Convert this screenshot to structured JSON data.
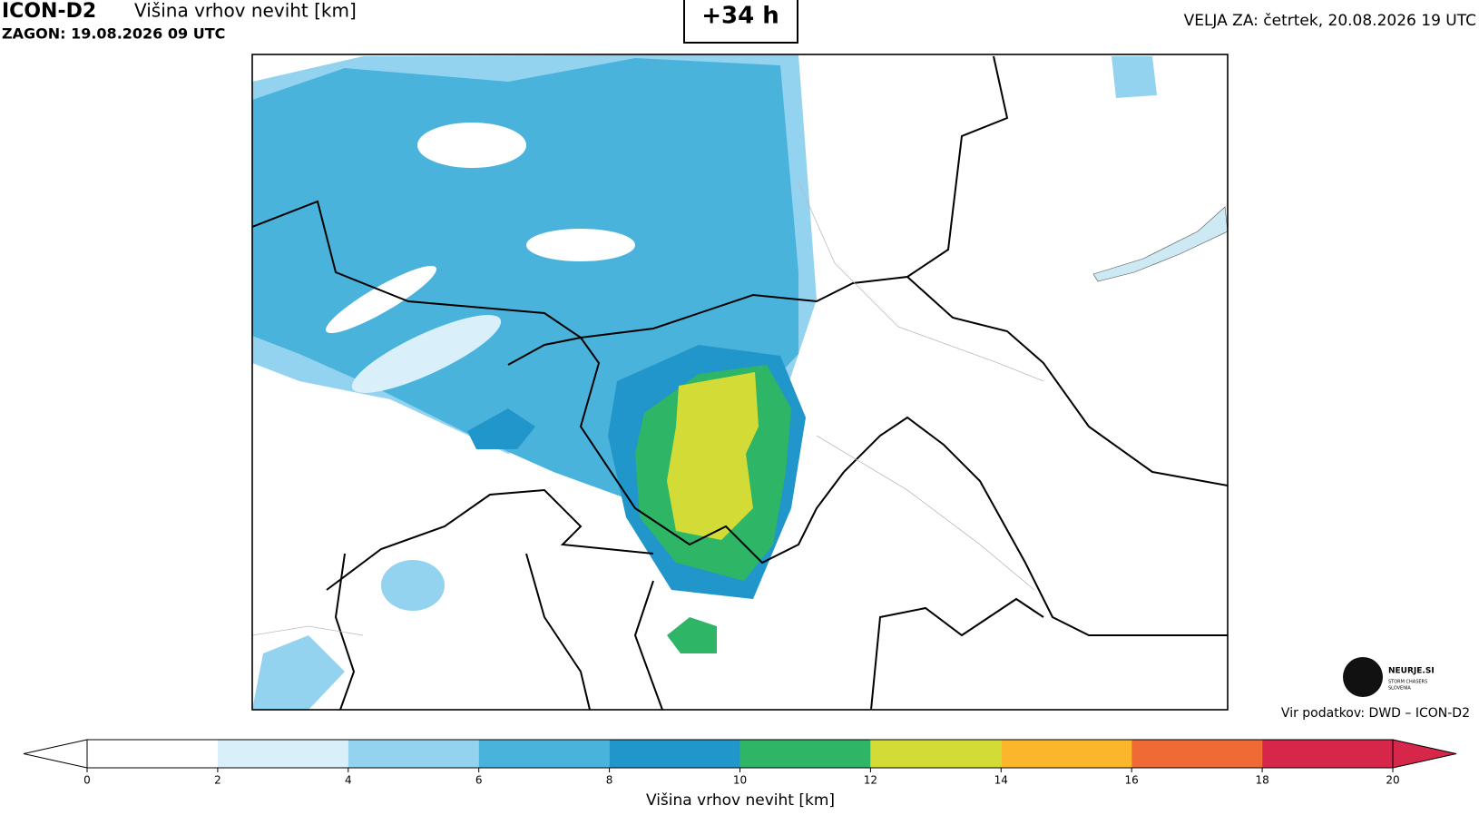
{
  "header": {
    "model": "ICON-D2",
    "title": "Višina vrhov neviht [km]",
    "run": "ZAGON: 19.08.2026 09 UTC",
    "lead": "+34 h",
    "valid": "VELJA ZA: četrtek, 20.08.2026 19 UTC"
  },
  "colorbar": {
    "label": "Višina vrhov neviht [km]",
    "ticks": [
      0,
      2,
      4,
      6,
      8,
      10,
      12,
      14,
      16,
      18,
      20
    ],
    "colors": [
      "#ffffff",
      "#d9f0fb",
      "#93d3f0",
      "#4ab3dc",
      "#2196cb",
      "#2fb566",
      "#d3dc36",
      "#fbb62c",
      "#f06a35",
      "#d6264a"
    ]
  },
  "logo": {
    "name": "NEURJE.SI",
    "line1": "STORM CHASERS",
    "line2": "SLOVENIA"
  },
  "source": "Vir podatkov: DWD – ICON-D2"
}
